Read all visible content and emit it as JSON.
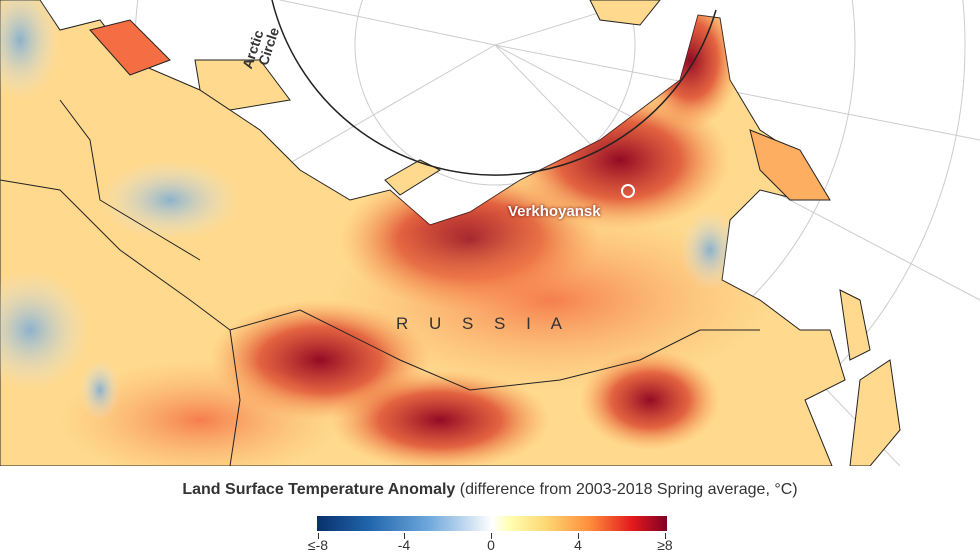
{
  "map": {
    "labels": {
      "arctic_circle_line1": "Arctic",
      "arctic_circle_line2": "Circle",
      "city": "Verkhoyansk",
      "country": "R U S S I A"
    },
    "colors": {
      "hot": "#800026",
      "warm": "#fd8d3c",
      "neutral": "#ffffb2",
      "cold": "#2166ac"
    }
  },
  "legend": {
    "title_bold": "Land Surface Temperature Anomaly",
    "title_rest": " (difference from 2003-2018 Spring average, °C)",
    "ticks": [
      "≤-8",
      "-4",
      "0",
      "4",
      "≥8"
    ]
  }
}
